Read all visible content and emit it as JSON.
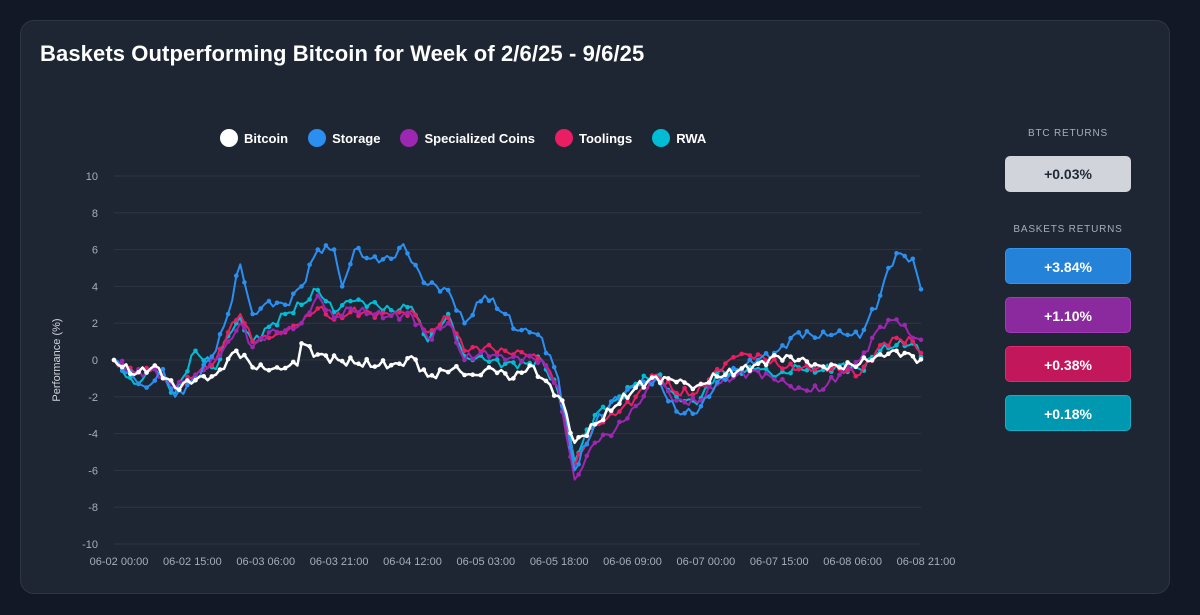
{
  "title": "Baskets Outperforming Bitcoin for Week of 2/6/25 - 9/6/25",
  "colors": {
    "Bitcoin": "#ffffff",
    "Storage": "#2b8ff0",
    "Specialized Coins": "#9c27b0",
    "Toolings": "#e91e63",
    "RWA": "#00bcd4"
  },
  "side_panel": {
    "btc_label": "BTC RETURNS",
    "btc_value": "+0.03%",
    "baskets_label": "BASKETS RETURNS",
    "baskets": [
      {
        "series": "Storage",
        "value": "+3.84%",
        "color": "#2482d8",
        "border": "#2f95f0"
      },
      {
        "series": "Specialized Coins",
        "value": "+1.10%",
        "color": "#8a2a9e",
        "border": "#a33bb8"
      },
      {
        "series": "Toolings",
        "value": "+0.38%",
        "color": "#c2185b",
        "border": "#dd2a70"
      },
      {
        "series": "RWA",
        "value": "+0.18%",
        "color": "#0098b1",
        "border": "#12b0c9"
      }
    ]
  },
  "chart_data": {
    "type": "line",
    "ylabel": "Performance (%)",
    "ylim": [
      -10,
      10
    ],
    "yticks": [
      10,
      8,
      6,
      4,
      2,
      0,
      -2,
      -4,
      -6,
      -8,
      -10
    ],
    "xticks": [
      "06-02 00:00",
      "06-02 15:00",
      "06-03 06:00",
      "06-03 21:00",
      "06-04 12:00",
      "06-05 03:00",
      "06-05 18:00",
      "06-06 09:00",
      "06-07 00:00",
      "06-07 15:00",
      "06-08 06:00",
      "06-08 21:00"
    ],
    "x_start": "06-02 00:00",
    "x_step": "1h",
    "legend_position": "top",
    "grid": true,
    "series": [
      {
        "name": "Bitcoin",
        "points": [
          [
            0,
            0
          ],
          [
            5,
            -0.8
          ],
          [
            10,
            -0.3
          ],
          [
            15,
            -1.5
          ],
          [
            20,
            -1.1
          ],
          [
            25,
            -0.8
          ],
          [
            30,
            0.5
          ],
          [
            35,
            -0.5
          ],
          [
            40,
            -0.4
          ],
          [
            45,
            -0.3
          ],
          [
            46,
            0.9
          ],
          [
            50,
            0.3
          ],
          [
            55,
            0
          ],
          [
            60,
            -0.2
          ],
          [
            65,
            -0.3
          ],
          [
            70,
            -0.2
          ],
          [
            73,
            0.2
          ],
          [
            77,
            -0.9
          ],
          [
            83,
            -0.5
          ],
          [
            88,
            -0.8
          ],
          [
            93,
            -0.5
          ],
          [
            98,
            -1
          ],
          [
            102,
            -0.3
          ],
          [
            105,
            -1
          ],
          [
            110,
            -2.2
          ],
          [
            113,
            -4.5
          ],
          [
            118,
            -3.5
          ],
          [
            123,
            -2.5
          ],
          [
            128,
            -1.5
          ],
          [
            133,
            -0.9
          ],
          [
            138,
            -1.2
          ],
          [
            143,
            -1.4
          ],
          [
            148,
            -0.9
          ],
          [
            153,
            -0.6
          ],
          [
            158,
            -0.2
          ],
          [
            163,
            0.2
          ],
          [
            168,
            0
          ],
          [
            173,
            -0.3
          ],
          [
            178,
            -0.4
          ],
          [
            183,
            -0.2
          ],
          [
            188,
            0.3
          ],
          [
            192,
            0.5
          ],
          [
            196,
            0.2
          ],
          [
            198,
            0.03
          ]
        ]
      },
      {
        "name": "Storage",
        "points": [
          [
            0,
            0
          ],
          [
            5,
            -1
          ],
          [
            8,
            -1.5
          ],
          [
            12,
            -0.5
          ],
          [
            15,
            -2
          ],
          [
            20,
            -1
          ],
          [
            25,
            0.5
          ],
          [
            28,
            2.5
          ],
          [
            31,
            5.2
          ],
          [
            34,
            2.5
          ],
          [
            38,
            3.2
          ],
          [
            42,
            3
          ],
          [
            46,
            4
          ],
          [
            50,
            6
          ],
          [
            54,
            6
          ],
          [
            56,
            4
          ],
          [
            59,
            6
          ],
          [
            63,
            5.5
          ],
          [
            68,
            5.5
          ],
          [
            71,
            6.3
          ],
          [
            76,
            4.2
          ],
          [
            82,
            3.8
          ],
          [
            86,
            2
          ],
          [
            91,
            3.5
          ],
          [
            96,
            2.5
          ],
          [
            99,
            1.6
          ],
          [
            102,
            1.5
          ],
          [
            105,
            1.2
          ],
          [
            109,
            -1
          ],
          [
            113,
            -6
          ],
          [
            118,
            -3.5
          ],
          [
            123,
            -2
          ],
          [
            128,
            -1.5
          ],
          [
            133,
            -1
          ],
          [
            138,
            -2.8
          ],
          [
            143,
            -2.9
          ],
          [
            148,
            -1.2
          ],
          [
            153,
            -0.5
          ],
          [
            158,
            0
          ],
          [
            163,
            0.5
          ],
          [
            168,
            1.5
          ],
          [
            173,
            1.2
          ],
          [
            178,
            1.6
          ],
          [
            183,
            1.2
          ],
          [
            188,
            3.5
          ],
          [
            190,
            5
          ],
          [
            192,
            5.8
          ],
          [
            196,
            5.5
          ],
          [
            198,
            3.84
          ]
        ]
      },
      {
        "name": "Specialized Coins",
        "points": [
          [
            0,
            0
          ],
          [
            5,
            -0.8
          ],
          [
            10,
            -0.5
          ],
          [
            15,
            -1.5
          ],
          [
            20,
            -0.8
          ],
          [
            25,
            0
          ],
          [
            28,
            1
          ],
          [
            31,
            2
          ],
          [
            34,
            0.7
          ],
          [
            38,
            1.5
          ],
          [
            42,
            1.6
          ],
          [
            46,
            2
          ],
          [
            50,
            3.5
          ],
          [
            54,
            2.3
          ],
          [
            58,
            2.8
          ],
          [
            63,
            2.5
          ],
          [
            68,
            2.4
          ],
          [
            73,
            2.5
          ],
          [
            77,
            1.2
          ],
          [
            82,
            2
          ],
          [
            86,
            0
          ],
          [
            91,
            0.5
          ],
          [
            96,
            0
          ],
          [
            101,
            0.2
          ],
          [
            105,
            0
          ],
          [
            109,
            -1.5
          ],
          [
            113,
            -6.5
          ],
          [
            118,
            -4.5
          ],
          [
            123,
            -3.8
          ],
          [
            128,
            -2.5
          ],
          [
            133,
            -1
          ],
          [
            138,
            -2.2
          ],
          [
            143,
            -2.3
          ],
          [
            148,
            -1.3
          ],
          [
            153,
            -0.8
          ],
          [
            158,
            -0.6
          ],
          [
            163,
            -1.2
          ],
          [
            168,
            -1.5
          ],
          [
            173,
            -1.7
          ],
          [
            178,
            -0.8
          ],
          [
            183,
            0
          ],
          [
            188,
            1.8
          ],
          [
            192,
            2.2
          ],
          [
            196,
            1.2
          ],
          [
            198,
            1.1
          ]
        ]
      },
      {
        "name": "Toolings",
        "points": [
          [
            0,
            0
          ],
          [
            5,
            -0.7
          ],
          [
            10,
            -0.3
          ],
          [
            15,
            -1.6
          ],
          [
            20,
            -0.8
          ],
          [
            25,
            0
          ],
          [
            28,
            1.5
          ],
          [
            31,
            2.5
          ],
          [
            34,
            1
          ],
          [
            38,
            1.2
          ],
          [
            42,
            1.5
          ],
          [
            46,
            2
          ],
          [
            50,
            2.8
          ],
          [
            54,
            2.2
          ],
          [
            58,
            2.6
          ],
          [
            63,
            2.6
          ],
          [
            68,
            2.4
          ],
          [
            73,
            2.7
          ],
          [
            77,
            1.5
          ],
          [
            82,
            2.3
          ],
          [
            86,
            0.5
          ],
          [
            91,
            0.7
          ],
          [
            96,
            0.5
          ],
          [
            101,
            0.3
          ],
          [
            105,
            0
          ],
          [
            109,
            -1.5
          ],
          [
            113,
            -5.8
          ],
          [
            118,
            -3.5
          ],
          [
            123,
            -3
          ],
          [
            128,
            -2
          ],
          [
            133,
            -0.8
          ],
          [
            138,
            -1.8
          ],
          [
            143,
            -1.8
          ],
          [
            148,
            -0.5
          ],
          [
            153,
            0.2
          ],
          [
            158,
            0.3
          ],
          [
            163,
            -0.3
          ],
          [
            168,
            -0.5
          ],
          [
            173,
            -0.4
          ],
          [
            178,
            -0.5
          ],
          [
            183,
            -0.8
          ],
          [
            188,
            0.8
          ],
          [
            192,
            1.2
          ],
          [
            196,
            1
          ],
          [
            198,
            0.38
          ]
        ]
      },
      {
        "name": "RWA",
        "points": [
          [
            0,
            0
          ],
          [
            5,
            -1.3
          ],
          [
            10,
            -0.5
          ],
          [
            15,
            -1.8
          ],
          [
            20,
            0.5
          ],
          [
            25,
            -0.5
          ],
          [
            28,
            1.3
          ],
          [
            31,
            2.3
          ],
          [
            34,
            1
          ],
          [
            38,
            1.8
          ],
          [
            42,
            2.5
          ],
          [
            46,
            3
          ],
          [
            50,
            3.8
          ],
          [
            54,
            2.6
          ],
          [
            58,
            3.2
          ],
          [
            63,
            3.1
          ],
          [
            68,
            2.7
          ],
          [
            73,
            2.9
          ],
          [
            77,
            1
          ],
          [
            82,
            2.5
          ],
          [
            86,
            0.2
          ],
          [
            91,
            0
          ],
          [
            96,
            -0.2
          ],
          [
            101,
            -0.2
          ],
          [
            105,
            0
          ],
          [
            109,
            -1.8
          ],
          [
            113,
            -5.5
          ],
          [
            118,
            -3
          ],
          [
            123,
            -2.2
          ],
          [
            128,
            -1.3
          ],
          [
            133,
            -0.8
          ],
          [
            138,
            -2
          ],
          [
            143,
            -2.4
          ],
          [
            148,
            -0.7
          ],
          [
            153,
            -0.6
          ],
          [
            158,
            -0.5
          ],
          [
            163,
            -0.8
          ],
          [
            168,
            -0.4
          ],
          [
            173,
            -0.6
          ],
          [
            178,
            -0.3
          ],
          [
            183,
            -0.5
          ],
          [
            188,
            0.5
          ],
          [
            192,
            0.8
          ],
          [
            196,
            0.9
          ],
          [
            198,
            0.18
          ]
        ]
      }
    ]
  }
}
